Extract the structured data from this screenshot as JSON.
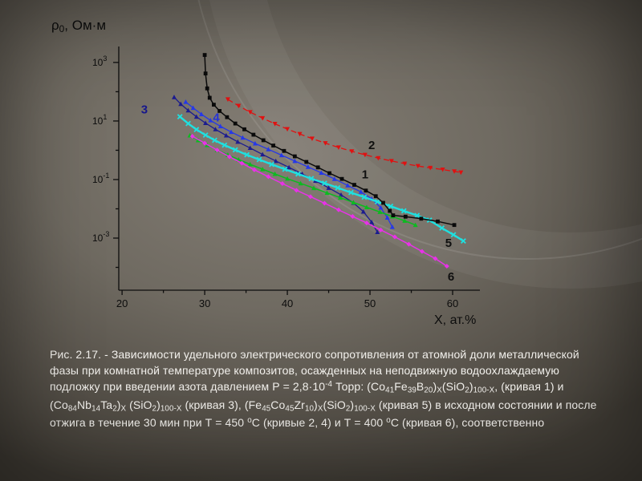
{
  "slide": {
    "caption_segments": [
      {
        "t": "Рис. 2.17. - Зависимости удельного электрического сопротивления от атомной доли металлической фазы при комнатной температуре композитов, осажденных на неподвижную водоохлаждаемую подложку при введении азота давлением Р = 2,8·10"
      },
      {
        "t": "-4",
        "style": "sup"
      },
      {
        "t": " Торр: (Co"
      },
      {
        "t": "41",
        "style": "sub"
      },
      {
        "t": "Fe"
      },
      {
        "t": "39",
        "style": "sub"
      },
      {
        "t": "B"
      },
      {
        "t": "20",
        "style": "sub"
      },
      {
        "t": ")"
      },
      {
        "t": "X",
        "style": "sub"
      },
      {
        "t": "(SiO"
      },
      {
        "t": "2",
        "style": "sub"
      },
      {
        "t": ")"
      },
      {
        "t": "100-X",
        "style": "sub"
      },
      {
        "t": ", (кривая 1) и (Co"
      },
      {
        "t": "84",
        "style": "sub"
      },
      {
        "t": "Nb"
      },
      {
        "t": "14",
        "style": "sub"
      },
      {
        "t": "Ta"
      },
      {
        "t": "2",
        "style": "sub"
      },
      {
        "t": ")"
      },
      {
        "t": "X",
        "style": "sub"
      },
      {
        "t": " (SiO"
      },
      {
        "t": "2",
        "style": "sub"
      },
      {
        "t": ")"
      },
      {
        "t": "100-X",
        "style": "sub"
      },
      {
        "t": " (кривая 3), (Fe"
      },
      {
        "t": "45",
        "style": "sub"
      },
      {
        "t": "Co"
      },
      {
        "t": "45",
        "style": "sub"
      },
      {
        "t": "Zr"
      },
      {
        "t": "10",
        "style": "sub"
      },
      {
        "t": ")"
      },
      {
        "t": "X",
        "style": "sub"
      },
      {
        "t": "(SiO"
      },
      {
        "t": "2",
        "style": "sub"
      },
      {
        "t": ")"
      },
      {
        "t": "100-X",
        "style": "sub"
      },
      {
        "t": " (кривая 5) в исходном состоянии и после отжига в течение 30 мин при Т = 450 "
      },
      {
        "t": "о",
        "style": "sup"
      },
      {
        "t": "С (кривые 2, 4) и Т = 400 "
      },
      {
        "t": "о",
        "style": "sup"
      },
      {
        "t": "С (кривая 6), соответственно"
      }
    ]
  },
  "chart_data": {
    "type": "line",
    "title": "",
    "xlabel": "X, ат.%",
    "ylabel": "ρ0, Ом·м",
    "ylabel_segments": [
      {
        "t": "ρ"
      },
      {
        "t": "0",
        "style": "sub"
      },
      {
        "t": ", Ом·м"
      }
    ],
    "x_axis_units": "ат.%",
    "y_axis_scale": "log",
    "xlim": [
      19.6,
      63.3
    ],
    "ylim_exponents": [
      -4.78,
      3.49
    ],
    "x_ticks": [
      20,
      30,
      40,
      50,
      60
    ],
    "x_minor_ticks": [
      25,
      35,
      45,
      55
    ],
    "y_tick_exponents": [
      3,
      1,
      -1,
      -3
    ],
    "y_minor_tick_exponents": [
      2,
      0,
      -2,
      -4
    ],
    "axis_color": "#0d0d0d",
    "grid": false,
    "legend": "none",
    "series": [
      {
        "label": "3",
        "color": "#1c1c8f",
        "marker": "triangle",
        "line": "solid",
        "width": 1.3,
        "points": [
          [
            26.3,
            65
          ],
          [
            27.1,
            38
          ],
          [
            28,
            23
          ],
          [
            29,
            14
          ],
          [
            30.1,
            8.5
          ],
          [
            31.3,
            5.2
          ],
          [
            32.6,
            3.2
          ],
          [
            34,
            1.95
          ],
          [
            35.5,
            1.2
          ],
          [
            37,
            0.72
          ],
          [
            38.6,
            0.43
          ],
          [
            40.2,
            0.26
          ],
          [
            41.8,
            0.155
          ],
          [
            43.4,
            0.09
          ],
          [
            45,
            0.052
          ],
          [
            46.5,
            0.03
          ],
          [
            48,
            0.016
          ],
          [
            49.2,
            0.008
          ],
          [
            50.2,
            0.0035
          ],
          [
            50.9,
            0.0016
          ]
        ]
      },
      {
        "label": "4",
        "color": "#2638e8",
        "marker": "triangle",
        "line": "solid",
        "width": 1.3,
        "points": [
          [
            27.7,
            45
          ],
          [
            28.6,
            28
          ],
          [
            29.6,
            17
          ],
          [
            30.7,
            10.5
          ],
          [
            31.9,
            6.6
          ],
          [
            33.2,
            4.2
          ],
          [
            34.6,
            2.7
          ],
          [
            36.1,
            1.7
          ],
          [
            37.7,
            1.08
          ],
          [
            39.3,
            0.68
          ],
          [
            40.9,
            0.43
          ],
          [
            42.5,
            0.27
          ],
          [
            44.1,
            0.17
          ],
          [
            45.7,
            0.105
          ],
          [
            47.3,
            0.063
          ],
          [
            48.9,
            0.038
          ],
          [
            50.2,
            0.022
          ],
          [
            51.3,
            0.011
          ],
          [
            52.1,
            0.005
          ],
          [
            52.7,
            0.0024
          ]
        ]
      },
      {
        "label": "",
        "color": "#0bbb1f",
        "marker": "triangle",
        "line": "solid",
        "width": 1.5,
        "points": [
          [
            28.2,
            3.2
          ],
          [
            29.2,
            2.2
          ],
          [
            30.3,
            1.5
          ],
          [
            31.5,
            1.02
          ],
          [
            32.8,
            0.7
          ],
          [
            34.1,
            0.48
          ],
          [
            35.5,
            0.33
          ],
          [
            37,
            0.225
          ],
          [
            38.5,
            0.155
          ],
          [
            40,
            0.107
          ],
          [
            41.6,
            0.074
          ],
          [
            43.2,
            0.051
          ],
          [
            44.8,
            0.035
          ],
          [
            46.4,
            0.024
          ],
          [
            48,
            0.0165
          ],
          [
            49.6,
            0.0113
          ],
          [
            51.2,
            0.0078
          ],
          [
            52.7,
            0.0055
          ],
          [
            54.2,
            0.0039
          ],
          [
            55.5,
            0.0028
          ]
        ]
      },
      {
        "label": "6",
        "color": "#e832e8",
        "marker": "diamond",
        "line": "solid",
        "width": 1.5,
        "points": [
          [
            28.5,
            3.0
          ],
          [
            30,
            1.75
          ],
          [
            31.5,
            1.02
          ],
          [
            33,
            0.6
          ],
          [
            34.5,
            0.36
          ],
          [
            36,
            0.215
          ],
          [
            37.7,
            0.125
          ],
          [
            39.4,
            0.073
          ],
          [
            41.1,
            0.043
          ],
          [
            42.8,
            0.026
          ],
          [
            44.5,
            0.0155
          ],
          [
            46.2,
            0.0092
          ],
          [
            47.9,
            0.0055
          ],
          [
            49.6,
            0.0033
          ],
          [
            51.3,
            0.0019
          ],
          [
            53,
            0.0011
          ],
          [
            54.7,
            0.00062
          ],
          [
            56.3,
            0.00035
          ],
          [
            57.9,
            0.0002
          ],
          [
            59.3,
            0.00011
          ]
        ]
      },
      {
        "label": "5",
        "color": "#1fe0e0",
        "marker": "cross",
        "line": "solid",
        "width": 2.4,
        "points": [
          [
            27,
            14
          ],
          [
            28,
            8.2
          ],
          [
            29,
            5.1
          ],
          [
            30.1,
            3.3
          ],
          [
            31.2,
            2.2
          ],
          [
            32.4,
            1.5
          ],
          [
            33.7,
            1.03
          ],
          [
            35.1,
            0.7
          ],
          [
            36.6,
            0.48
          ],
          [
            38.1,
            0.33
          ],
          [
            39.7,
            0.225
          ],
          [
            41.3,
            0.155
          ],
          [
            42.9,
            0.108
          ],
          [
            44.5,
            0.075
          ],
          [
            46.1,
            0.052
          ],
          [
            47.7,
            0.036
          ],
          [
            49.3,
            0.025
          ],
          [
            50.9,
            0.0175
          ],
          [
            52.5,
            0.0122
          ],
          [
            54.1,
            0.0085
          ],
          [
            55.7,
            0.0059
          ],
          [
            57.2,
            0.0041
          ],
          [
            58.7,
            0.0022
          ],
          [
            60.1,
            0.0013
          ],
          [
            61.3,
            0.0008
          ]
        ]
      },
      {
        "label": "2",
        "color": "#e01111",
        "marker": "triangle-down",
        "line": "dashed",
        "width": 1.3,
        "points": [
          [
            32.8,
            55
          ],
          [
            34.1,
            33
          ],
          [
            35.5,
            20
          ],
          [
            37,
            12.5
          ],
          [
            38.5,
            8
          ],
          [
            40,
            5.3
          ],
          [
            41.5,
            3.6
          ],
          [
            43,
            2.5
          ],
          [
            44.6,
            1.75
          ],
          [
            46.2,
            1.25
          ],
          [
            47.8,
            0.92
          ],
          [
            49.4,
            0.7
          ],
          [
            51,
            0.54
          ],
          [
            52.6,
            0.43
          ],
          [
            54.2,
            0.35
          ],
          [
            55.8,
            0.29
          ],
          [
            57.3,
            0.25
          ],
          [
            58.8,
            0.22
          ],
          [
            60.2,
            0.19
          ],
          [
            61,
            0.175
          ]
        ]
      },
      {
        "label": "1",
        "color": "#0a0a0a",
        "marker": "square",
        "line": "solid",
        "width": 1.5,
        "points": [
          [
            30,
            1800
          ],
          [
            30.1,
            420
          ],
          [
            30.3,
            130
          ],
          [
            30.6,
            62
          ],
          [
            31.1,
            36
          ],
          [
            31.8,
            22
          ],
          [
            32.7,
            13.5
          ],
          [
            33.7,
            8.2
          ],
          [
            34.8,
            5.2
          ],
          [
            35.9,
            3.4
          ],
          [
            37.1,
            2.2
          ],
          [
            38.3,
            1.45
          ],
          [
            39.6,
            0.95
          ],
          [
            40.9,
            0.62
          ],
          [
            42.3,
            0.4
          ],
          [
            43.7,
            0.26
          ],
          [
            45.1,
            0.165
          ],
          [
            46.6,
            0.105
          ],
          [
            48.1,
            0.066
          ],
          [
            49.5,
            0.042
          ],
          [
            50.7,
            0.027
          ],
          [
            51.6,
            0.016
          ],
          [
            52.4,
            0.0085
          ],
          [
            52.8,
            0.006
          ],
          [
            54.3,
            0.0054
          ],
          [
            56.2,
            0.0046
          ],
          [
            58.2,
            0.0037
          ],
          [
            60.2,
            0.0028
          ]
        ]
      }
    ],
    "curve_labels": [
      {
        "text": "1",
        "x": 49,
        "rho": 0.11,
        "color": "#101010"
      },
      {
        "text": "2",
        "x": 49.8,
        "rho": 1.1,
        "color": "#101010"
      },
      {
        "text": "3",
        "x": 22.3,
        "rho": 18,
        "color": "#16168c"
      },
      {
        "text": "4",
        "x": 31,
        "rho": 9.5,
        "color": "#2433d8"
      },
      {
        "text": "5",
        "x": 59.1,
        "rho": 0.0005,
        "color": "#101010"
      },
      {
        "text": "6",
        "x": 59.4,
        "rho": 3.5e-05,
        "color": "#101010"
      }
    ]
  }
}
